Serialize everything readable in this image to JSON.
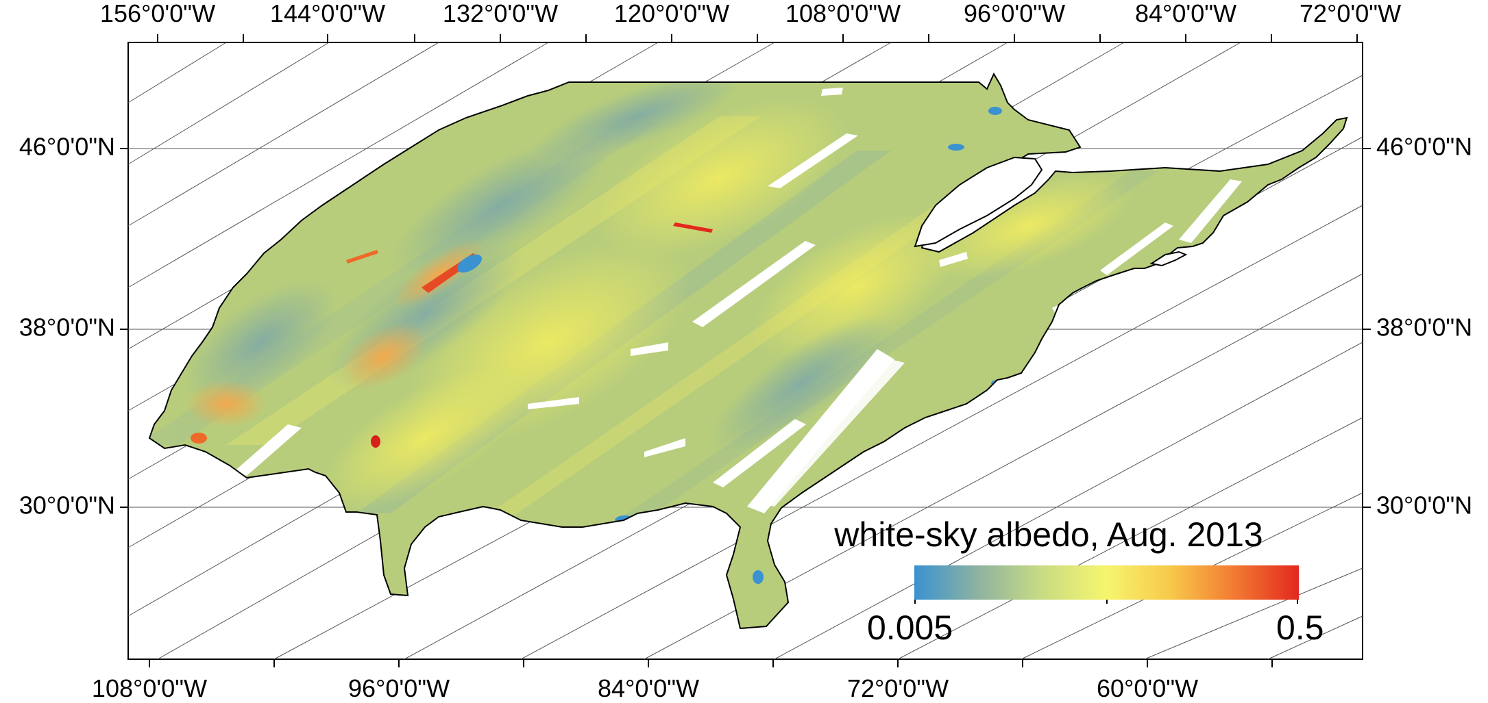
{
  "map": {
    "top_axis_labels": [
      "156°0'0\"W",
      "144°0'0\"W",
      "132°0'0\"W",
      "120°0'0\"W",
      "108°0'0\"W",
      "96°0'0\"W",
      "84°0'0\"W",
      "72°0'0\"W"
    ],
    "bottom_axis_labels": [
      "108°0'0\"W",
      "96°0'0\"W",
      "84°0'0\"W",
      "72°0'0\"W",
      "60°0'0\"W"
    ],
    "left_axis_labels": [
      "46°0'0\"N",
      "38°0'0\"N",
      "30°0'0\"N"
    ],
    "right_axis_labels": [
      "46°0'0\"N",
      "38°0'0\"N",
      "30°0'0\"N"
    ],
    "legend": {
      "title": "white-sky albedo, Aug. 2013",
      "min_label": "0.005",
      "max_label": "0.5",
      "colors": [
        "#3a92d0",
        "#8fb3a0",
        "#c9dc82",
        "#f6f56e",
        "#f8c84a",
        "#f27a32",
        "#e3281e"
      ]
    },
    "colors": {
      "land_base": "#b7cd7c",
      "land_yellow": "#e4e66a",
      "land_blue": "#8fb4a2",
      "water_blue": "#3a92d0",
      "high_albedo": "#e64a24",
      "outline": "#000000",
      "grid": "#555555"
    }
  }
}
